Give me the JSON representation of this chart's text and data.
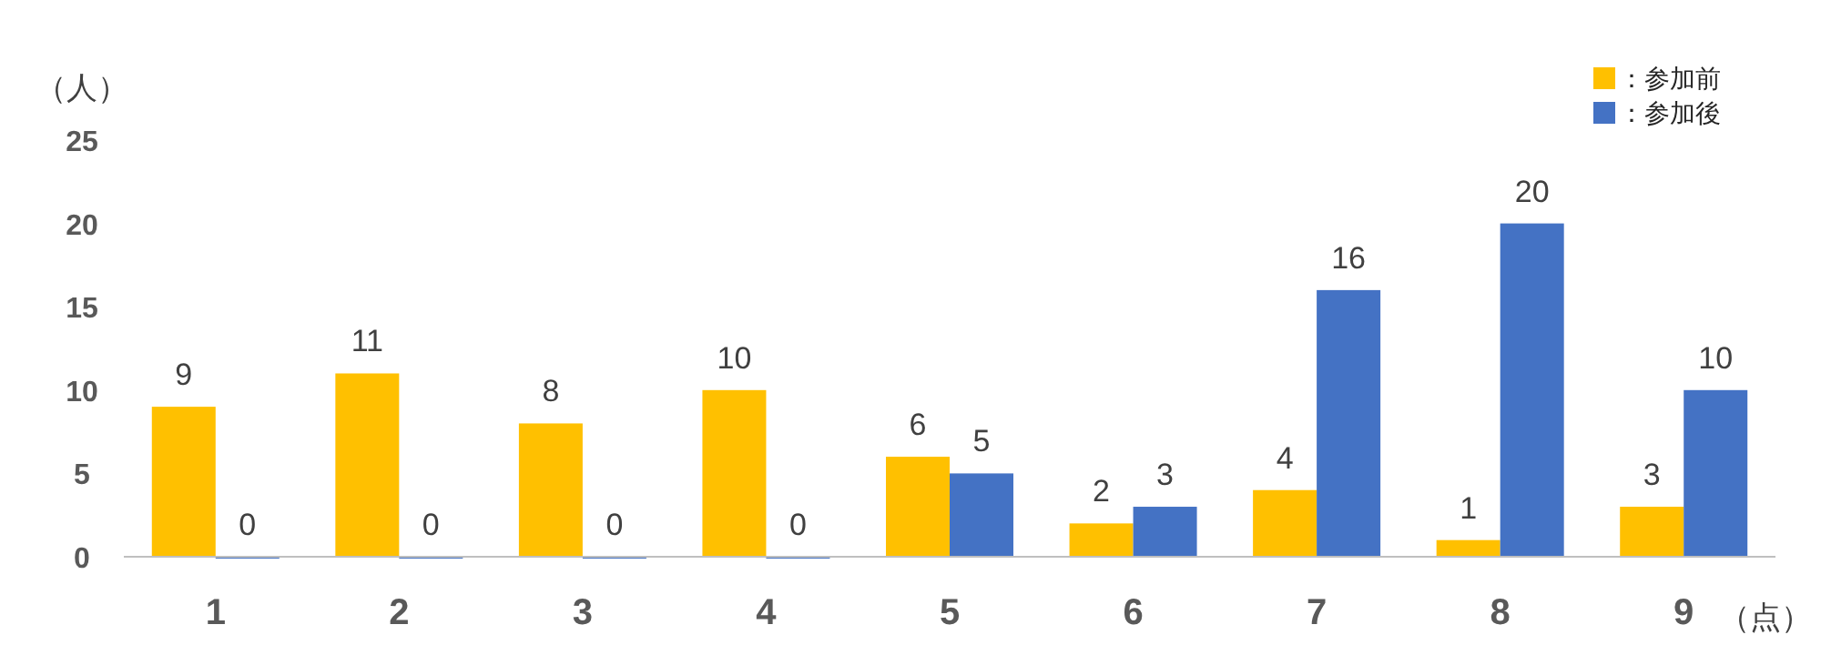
{
  "chart_data": {
    "type": "bar",
    "ylabel": "（人）",
    "xlabel": "（点）",
    "categories": [
      "1",
      "2",
      "3",
      "4",
      "5",
      "6",
      "7",
      "8",
      "9"
    ],
    "series": [
      {
        "name": "：参加前",
        "color": "#ffc000",
        "values": [
          9,
          11,
          8,
          10,
          6,
          2,
          4,
          1,
          3
        ]
      },
      {
        "name": "：参加後",
        "color": "#4472c4",
        "values": [
          0,
          0,
          0,
          0,
          5,
          3,
          16,
          20,
          10
        ]
      }
    ],
    "ylim": [
      0,
      25
    ],
    "yticks": [
      0,
      5,
      10,
      15,
      20,
      25
    ],
    "data_labels": true,
    "legend": "top right",
    "grid": false
  }
}
